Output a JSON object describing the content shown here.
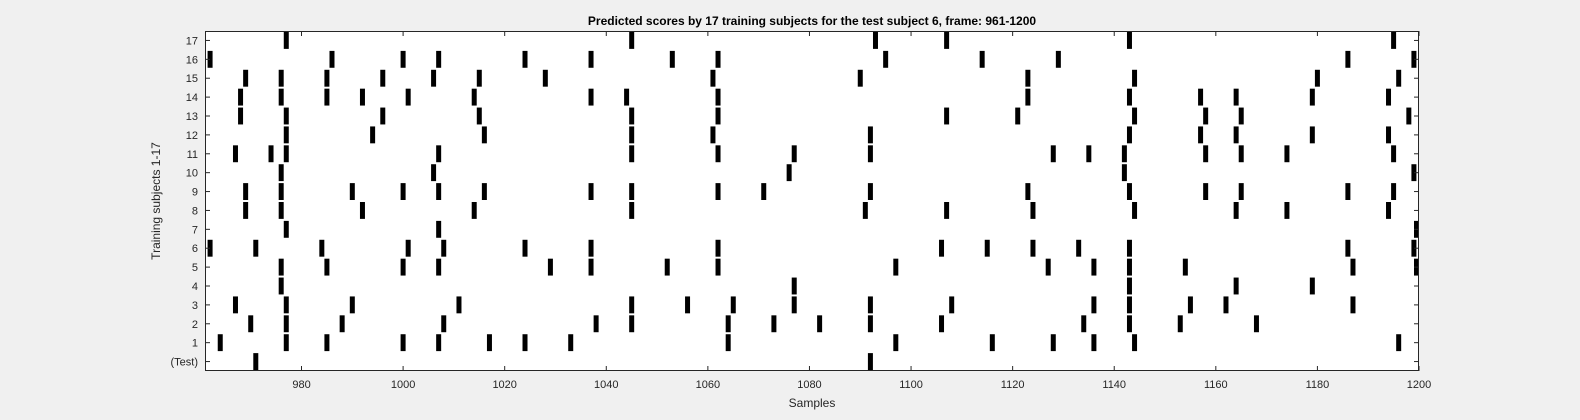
{
  "chart_data": {
    "type": "raster",
    "title": "Predicted scores by 17 training subjects for the test subject 6, frame: 961-1200",
    "xlabel": "Samples",
    "ylabel": "Training subjects 1-17",
    "xlim": [
      961,
      1200
    ],
    "x_ticks": [
      980,
      1000,
      1020,
      1040,
      1060,
      1080,
      1100,
      1120,
      1140,
      1160,
      1180,
      1200
    ],
    "y_ticks": [
      "(Test)",
      "1",
      "2",
      "3",
      "4",
      "5",
      "6",
      "7",
      "8",
      "9",
      "10",
      "11",
      "12",
      "13",
      "14",
      "15",
      "16",
      "17"
    ],
    "grid": false,
    "bar_color": "#000000",
    "rows": [
      {
        "label": "(Test)",
        "events": [
          971,
          1092
        ]
      },
      {
        "label": "1",
        "events": [
          964,
          977,
          985,
          1000,
          1007,
          1017,
          1024,
          1033,
          1064,
          1097,
          1116,
          1128,
          1136,
          1144,
          1196
        ]
      },
      {
        "label": "2",
        "events": [
          970,
          977,
          988,
          1008,
          1038,
          1045,
          1064,
          1073,
          1082,
          1092,
          1106,
          1134,
          1143,
          1153,
          1168
        ]
      },
      {
        "label": "3",
        "events": [
          967,
          977,
          990,
          1011,
          1045,
          1056,
          1065,
          1077,
          1092,
          1108,
          1136,
          1143,
          1155,
          1162,
          1187
        ]
      },
      {
        "label": "4",
        "events": [
          976,
          1077,
          1143,
          1164,
          1179
        ]
      },
      {
        "label": "5",
        "events": [
          976,
          985,
          1000,
          1007,
          1029,
          1037,
          1052,
          1062,
          1097,
          1127,
          1136,
          1143,
          1154,
          1187,
          1200
        ]
      },
      {
        "label": "6",
        "events": [
          962,
          971,
          984,
          1001,
          1008,
          1024,
          1037,
          1062,
          1106,
          1115,
          1124,
          1133,
          1143,
          1186,
          1199
        ]
      },
      {
        "label": "7",
        "events": [
          977,
          1007,
          1200
        ]
      },
      {
        "label": "8",
        "events": [
          969,
          976,
          992,
          1014,
          1045,
          1091,
          1107,
          1124,
          1144,
          1164,
          1174,
          1194
        ]
      },
      {
        "label": "9",
        "events": [
          969,
          976,
          990,
          1000,
          1007,
          1016,
          1037,
          1045,
          1062,
          1071,
          1092,
          1123,
          1143,
          1158,
          1165,
          1186,
          1195
        ]
      },
      {
        "label": "10",
        "events": [
          976,
          1006,
          1076,
          1142,
          1199
        ]
      },
      {
        "label": "11",
        "events": [
          967,
          974,
          977,
          1007,
          1045,
          1062,
          1077,
          1092,
          1128,
          1135,
          1142,
          1158,
          1165,
          1174,
          1195
        ]
      },
      {
        "label": "12",
        "events": [
          977,
          994,
          1016,
          1045,
          1061,
          1092,
          1143,
          1157,
          1164,
          1179,
          1194
        ]
      },
      {
        "label": "13",
        "events": [
          968,
          977,
          996,
          1015,
          1045,
          1062,
          1107,
          1121,
          1144,
          1158,
          1165,
          1198
        ]
      },
      {
        "label": "14",
        "events": [
          968,
          976,
          985,
          992,
          1001,
          1014,
          1037,
          1044,
          1062,
          1123,
          1143,
          1157,
          1164,
          1179,
          1194
        ]
      },
      {
        "label": "15",
        "events": [
          969,
          976,
          985,
          996,
          1006,
          1015,
          1028,
          1061,
          1090,
          1123,
          1144,
          1180,
          1196
        ]
      },
      {
        "label": "16",
        "events": [
          962,
          986,
          1000,
          1007,
          1024,
          1037,
          1053,
          1062,
          1095,
          1114,
          1129,
          1186,
          1199
        ]
      },
      {
        "label": "17",
        "events": [
          977,
          1045,
          1093,
          1107,
          1143,
          1195
        ]
      }
    ]
  }
}
